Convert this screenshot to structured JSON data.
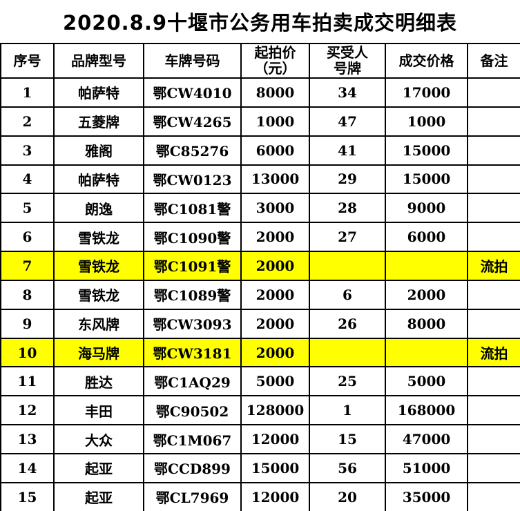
{
  "title": "2020.8.9十堰市公务用车拍卖成交明细表",
  "colors": {
    "highlight_row": "#ffff00",
    "failed_remark_text": "#ff0000",
    "border": "#000000",
    "text": "#000000",
    "background": "#ffffff"
  },
  "table": {
    "columns": [
      "序号",
      "品牌型号",
      "车牌号码",
      "起拍价\n（元）",
      "买受人\n号牌",
      "成交价格",
      "备注"
    ],
    "rows": [
      {
        "seq": "1",
        "brand": "帕萨特",
        "plate": "鄂CW4010",
        "start_price": "8000",
        "buyer_no": "34",
        "deal_price": "17000",
        "remark": "",
        "highlight": false
      },
      {
        "seq": "2",
        "brand": "五菱牌",
        "plate": "鄂CW4265",
        "start_price": "1000",
        "buyer_no": "47",
        "deal_price": "1000",
        "remark": "",
        "highlight": false
      },
      {
        "seq": "3",
        "brand": "雅阁",
        "plate": "鄂C85276",
        "start_price": "6000",
        "buyer_no": "41",
        "deal_price": "15000",
        "remark": "",
        "highlight": false
      },
      {
        "seq": "4",
        "brand": "帕萨特",
        "plate": "鄂CW0123",
        "start_price": "13000",
        "buyer_no": "29",
        "deal_price": "15000",
        "remark": "",
        "highlight": false
      },
      {
        "seq": "5",
        "brand": "朗逸",
        "plate": "鄂C1081警",
        "start_price": "3000",
        "buyer_no": "28",
        "deal_price": "9000",
        "remark": "",
        "highlight": false
      },
      {
        "seq": "6",
        "brand": "雪铁龙",
        "plate": "鄂C1090警",
        "start_price": "2000",
        "buyer_no": "27",
        "deal_price": "6000",
        "remark": "",
        "highlight": false
      },
      {
        "seq": "7",
        "brand": "雪铁龙",
        "plate": "鄂C1091警",
        "start_price": "2000",
        "buyer_no": "",
        "deal_price": "",
        "remark": "流拍",
        "highlight": true
      },
      {
        "seq": "8",
        "brand": "雪铁龙",
        "plate": "鄂C1089警",
        "start_price": "2000",
        "buyer_no": "6",
        "deal_price": "2000",
        "remark": "",
        "highlight": false
      },
      {
        "seq": "9",
        "brand": "东风牌",
        "plate": "鄂CW3093",
        "start_price": "2000",
        "buyer_no": "26",
        "deal_price": "8000",
        "remark": "",
        "highlight": false
      },
      {
        "seq": "10",
        "brand": "海马牌",
        "plate": "鄂CW3181",
        "start_price": "2000",
        "buyer_no": "",
        "deal_price": "",
        "remark": "流拍",
        "highlight": true
      },
      {
        "seq": "11",
        "brand": "胜达",
        "plate": "鄂C1AQ29",
        "start_price": "5000",
        "buyer_no": "25",
        "deal_price": "5000",
        "remark": "",
        "highlight": false
      },
      {
        "seq": "12",
        "brand": "丰田",
        "plate": "鄂C90502",
        "start_price": "128000",
        "buyer_no": "1",
        "deal_price": "168000",
        "remark": "",
        "highlight": false
      },
      {
        "seq": "13",
        "brand": "大众",
        "plate": "鄂C1M067",
        "start_price": "12000",
        "buyer_no": "15",
        "deal_price": "47000",
        "remark": "",
        "highlight": false
      },
      {
        "seq": "14",
        "brand": "起亚",
        "plate": "鄂CCD899",
        "start_price": "15000",
        "buyer_no": "56",
        "deal_price": "51000",
        "remark": "",
        "highlight": false
      },
      {
        "seq": "15",
        "brand": "起亚",
        "plate": "鄂CL7969",
        "start_price": "12000",
        "buyer_no": "20",
        "deal_price": "35000",
        "remark": "",
        "highlight": false
      }
    ]
  }
}
